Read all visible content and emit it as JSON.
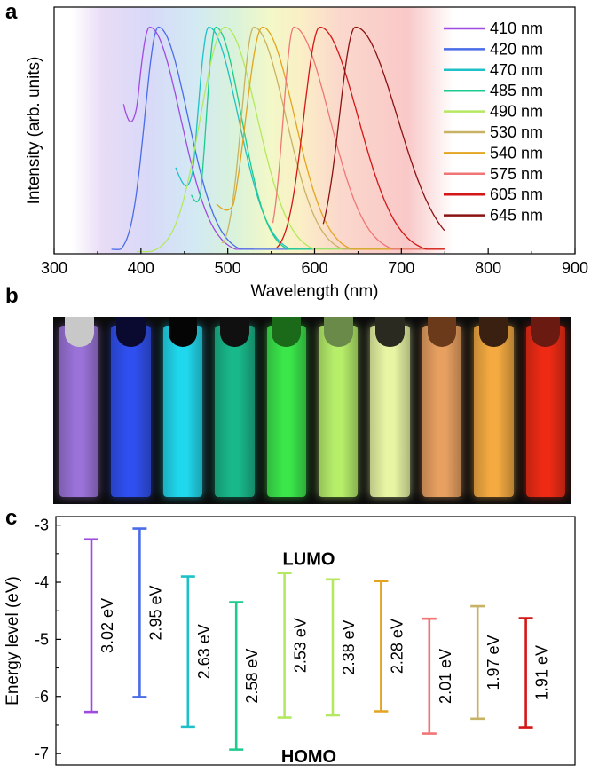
{
  "panels": {
    "a": "a",
    "b": "b",
    "c": "c"
  },
  "colors": {
    "410": "#a04be0",
    "420": "#4a6ce8",
    "470": "#1fc0c8",
    "485": "#1dcc8c",
    "490": "#b4e860",
    "530": "#c8b264",
    "540": "#e3a420",
    "575": "#f07676",
    "605": "#d41616",
    "645": "#8a1212"
  },
  "chart_data": [
    {
      "id": "a",
      "type": "line",
      "title": "",
      "xlabel": "Wavelength (nm)",
      "ylabel": "Intensity (arb. units)",
      "xlim": [
        300,
        900
      ],
      "ylim": [
        0,
        1.05
      ],
      "xticks": [
        300,
        400,
        500,
        600,
        700,
        800,
        900
      ],
      "xtick_labels": [
        "300",
        "400",
        "500",
        "600",
        "700",
        "800",
        "900"
      ],
      "background_gradient": "visible spectrum (violet to red) from 320 to 760 nm",
      "series": [
        {
          "name": "410 nm",
          "key": "410",
          "peak": 410,
          "start": 380,
          "end": 530,
          "left_width": 22,
          "right_width": 50,
          "start_value": 0.66
        },
        {
          "name": "420 nm",
          "key": "420",
          "peak": 420,
          "start": 366,
          "end": 750,
          "left_width": 22,
          "right_width": 48,
          "start_value": 0.02
        },
        {
          "name": "470 nm",
          "key": "470",
          "peak": 478,
          "start": 440,
          "end": 750,
          "left_width": 18,
          "right_width": 48,
          "start_value": 0.38
        },
        {
          "name": "485 nm",
          "key": "485",
          "peak": 486,
          "start": 458,
          "end": 750,
          "left_width": 15,
          "right_width": 42,
          "start_value": 0.26
        },
        {
          "name": "490 nm",
          "key": "490",
          "peak": 497,
          "start": 395,
          "end": 750,
          "left_width": 40,
          "right_width": 52,
          "start_value": 0.01
        },
        {
          "name": "530 nm",
          "key": "530",
          "peak": 530,
          "start": 493,
          "end": 750,
          "left_width": 20,
          "right_width": 52,
          "start_value": 0.05
        },
        {
          "name": "540 nm",
          "key": "540",
          "peak": 540,
          "start": 487,
          "end": 750,
          "left_width": 27,
          "right_width": 52,
          "start_value": 0.22
        },
        {
          "name": "575 nm",
          "key": "575",
          "peak": 576,
          "start": 552,
          "end": 750,
          "left_width": 17,
          "right_width": 58,
          "start_value": 0.08
        },
        {
          "name": "605 nm",
          "key": "605",
          "peak": 606,
          "start": 556,
          "end": 750,
          "left_width": 26,
          "right_width": 62,
          "start_value": 0.02
        },
        {
          "name": "645 nm",
          "key": "645",
          "peak": 647,
          "start": 610,
          "end": 750,
          "left_width": 26,
          "right_width": 68,
          "start_value": 0.0
        }
      ],
      "legend_position": "right"
    },
    {
      "id": "c",
      "type": "bar",
      "title": "",
      "xlabel": "",
      "ylabel": "Energy level (eV)",
      "ylim": [
        -7.2,
        -2.85
      ],
      "yticks": [
        -3,
        -4,
        -5,
        -6,
        -7
      ],
      "ytick_labels": [
        "-3",
        "-4",
        "-5",
        "-6",
        "-7"
      ],
      "annotations": {
        "lumo": "LUMO",
        "homo": "HOMO"
      },
      "series": [
        {
          "key": "410",
          "label": "3.02 eV",
          "lumo": -3.25,
          "homo": -6.27
        },
        {
          "key": "420",
          "label": "2.95 eV",
          "lumo": -3.06,
          "homo": -6.01
        },
        {
          "key": "470",
          "label": "2.63 eV",
          "lumo": -3.9,
          "homo": -6.53
        },
        {
          "key": "485",
          "label": "2.58 eV",
          "lumo": -4.35,
          "homo": -6.93
        },
        {
          "key": "490",
          "label": "2.53 eV",
          "lumo": -3.84,
          "homo": -6.37
        },
        {
          "key": "490",
          "label": "2.38 eV",
          "lumo": -3.95,
          "homo": -6.33
        },
        {
          "key": "540",
          "label": "2.28 eV",
          "lumo": -3.98,
          "homo": -6.26
        },
        {
          "key": "575",
          "label": "2.01 eV",
          "lumo": -4.64,
          "homo": -6.65
        },
        {
          "key": "530",
          "label": "1.97 eV",
          "lumo": -4.42,
          "homo": -6.39
        },
        {
          "key": "605",
          "label": "1.91 eV",
          "lumo": -4.63,
          "homo": -6.54
        }
      ]
    }
  ],
  "photo": {
    "vials": [
      {
        "glow": "#9a72d8",
        "cap": "#c8c8c8"
      },
      {
        "glow": "#2f4ff0",
        "cap": "#0a0a30"
      },
      {
        "glow": "#20d8ee",
        "cap": "#050505"
      },
      {
        "glow": "#18b88a",
        "cap": "#101010"
      },
      {
        "glow": "#3ae64a",
        "cap": "#1a6a1a"
      },
      {
        "glow": "#b6ee6a",
        "cap": "#6a8a4a"
      },
      {
        "glow": "#e8f6a4",
        "cap": "#2a2a20"
      },
      {
        "glow": "#e8a060",
        "cap": "#6a3a1a"
      },
      {
        "glow": "#f4aa40",
        "cap": "#3a2010"
      },
      {
        "glow": "#ee2a14",
        "cap": "#6a1a10"
      }
    ]
  }
}
